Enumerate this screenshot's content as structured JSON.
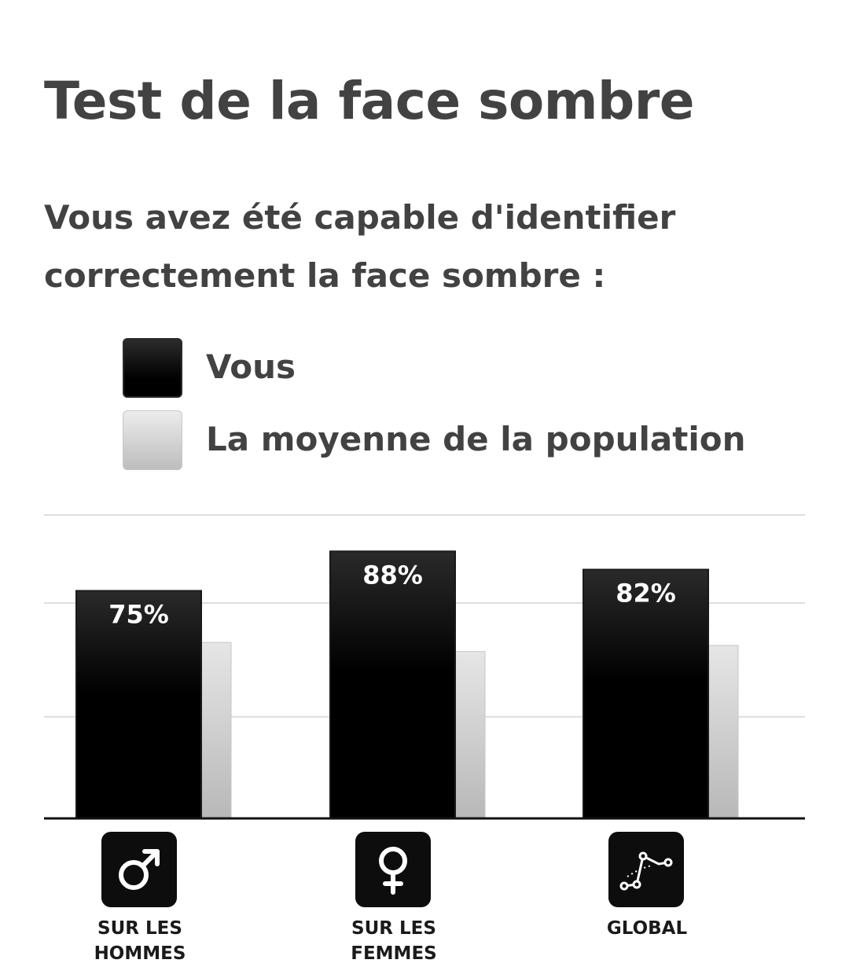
{
  "header": {
    "title": "Test de la face sombre",
    "subtitle": "Vous avez été capable d'identifier correctement la face sombre :"
  },
  "legend": [
    {
      "label": "Vous",
      "color": "#000000"
    },
    {
      "label": "La moyenne de la population",
      "color": "#c4c4c4"
    }
  ],
  "chart_data": {
    "type": "bar",
    "categories": [
      {
        "line1": "SUR LES",
        "line2": "HOMMES",
        "icon": "male-symbol-icon"
      },
      {
        "line1": "SUR LES",
        "line2": "FEMMES",
        "icon": "female-symbol-icon"
      },
      {
        "line1": "GLOBAL",
        "line2": "",
        "icon": "line-chart-icon"
      }
    ],
    "series": [
      {
        "name": "Vous",
        "values": [
          75,
          88,
          82
        ],
        "labels": [
          "75%",
          "88%",
          "82%"
        ]
      },
      {
        "name": "La moyenne de la population",
        "values": [
          58,
          55,
          57
        ]
      }
    ],
    "ylim": [
      0,
      100
    ],
    "grid": true
  }
}
